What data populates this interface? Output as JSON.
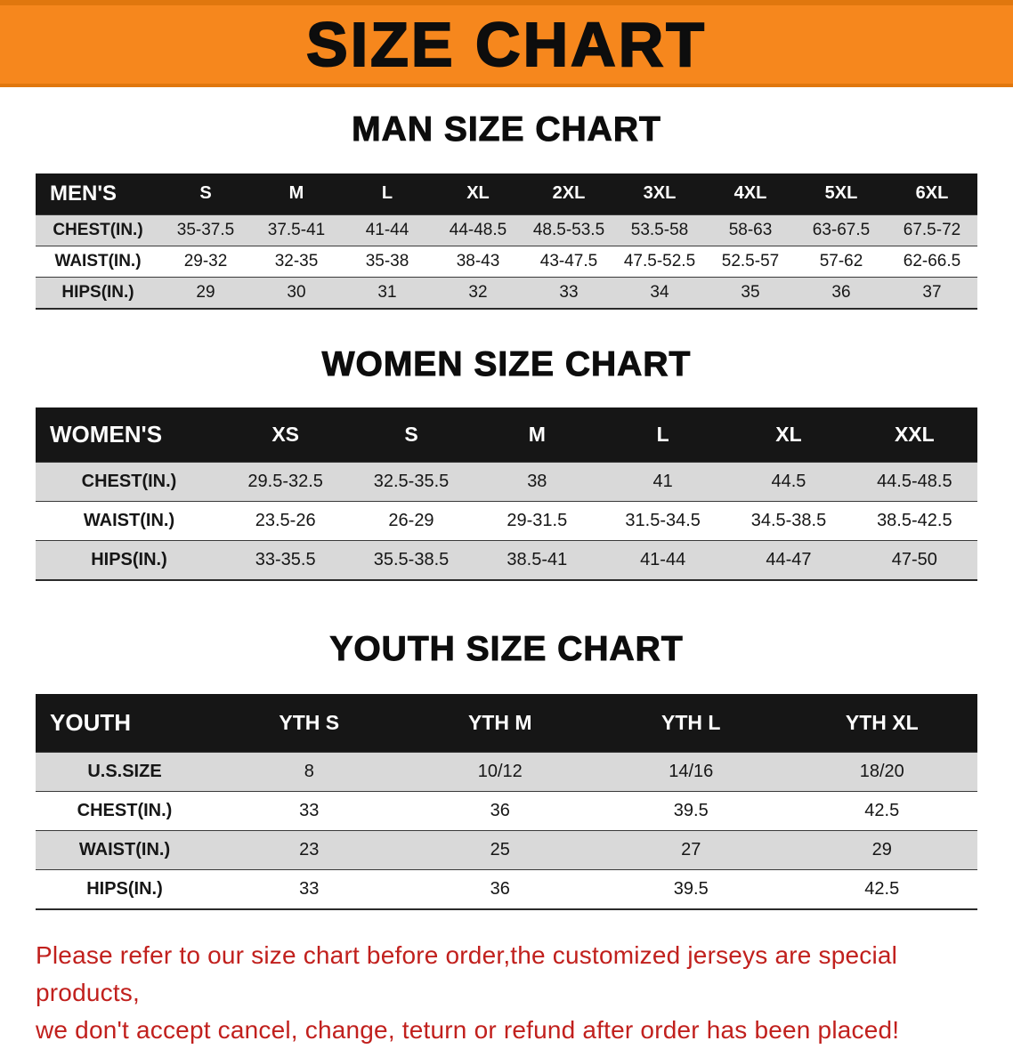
{
  "banner": {
    "title": "SIZE CHART"
  },
  "colors": {
    "banner_bg": "#f6871d",
    "table_header_bg": "#161616",
    "row_stripe": "#d9d9d9",
    "note_red": "#c1201d"
  },
  "sections": [
    {
      "id": "men",
      "heading": "MAN SIZE CHART",
      "table": {
        "corner_label": "MEN'S",
        "columns": [
          "S",
          "M",
          "L",
          "XL",
          "2XL",
          "3XL",
          "4XL",
          "5XL",
          "6XL"
        ],
        "rows": [
          {
            "label": "CHEST(IN.)",
            "values": [
              "35-37.5",
              "37.5-41",
              "41-44",
              "44-48.5",
              "48.5-53.5",
              "53.5-58",
              "58-63",
              "63-67.5",
              "67.5-72"
            ]
          },
          {
            "label": "WAIST(IN.)",
            "values": [
              "29-32",
              "32-35",
              "35-38",
              "38-43",
              "43-47.5",
              "47.5-52.5",
              "52.5-57",
              "57-62",
              "62-66.5"
            ]
          },
          {
            "label": "HIPS(IN.)",
            "values": [
              "29",
              "30",
              "31",
              "32",
              "33",
              "34",
              "35",
              "36",
              "37"
            ]
          }
        ]
      }
    },
    {
      "id": "women",
      "heading": "WOMEN SIZE CHART",
      "table": {
        "corner_label": "WOMEN'S",
        "columns": [
          "XS",
          "S",
          "M",
          "L",
          "XL",
          "XXL"
        ],
        "rows": [
          {
            "label": "CHEST(IN.)",
            "values": [
              "29.5-32.5",
              "32.5-35.5",
              "38",
              "41",
              "44.5",
              "44.5-48.5"
            ]
          },
          {
            "label": "WAIST(IN.)",
            "values": [
              "23.5-26",
              "26-29",
              "29-31.5",
              "31.5-34.5",
              "34.5-38.5",
              "38.5-42.5"
            ]
          },
          {
            "label": "HIPS(IN.)",
            "values": [
              "33-35.5",
              "35.5-38.5",
              "38.5-41",
              "41-44",
              "44-47",
              "47-50"
            ]
          }
        ]
      }
    },
    {
      "id": "youth",
      "heading": "YOUTH SIZE CHART",
      "table": {
        "corner_label": "YOUTH",
        "columns": [
          "YTH S",
          "YTH M",
          "YTH L",
          "YTH XL"
        ],
        "rows": [
          {
            "label": "U.S.SIZE",
            "values": [
              "8",
              "10/12",
              "14/16",
              "18/20"
            ]
          },
          {
            "label": "CHEST(IN.)",
            "values": [
              "33",
              "36",
              "39.5",
              "42.5"
            ]
          },
          {
            "label": "WAIST(IN.)",
            "values": [
              "23",
              "25",
              "27",
              "29"
            ]
          },
          {
            "label": "HIPS(IN.)",
            "values": [
              "33",
              "36",
              "39.5",
              "42.5"
            ]
          }
        ]
      }
    }
  ],
  "note": {
    "line1": "Please refer to our size chart before order,the customized jerseys are special products,",
    "line2": "we don't accept cancel, change, teturn or refund after order has been placed!"
  }
}
